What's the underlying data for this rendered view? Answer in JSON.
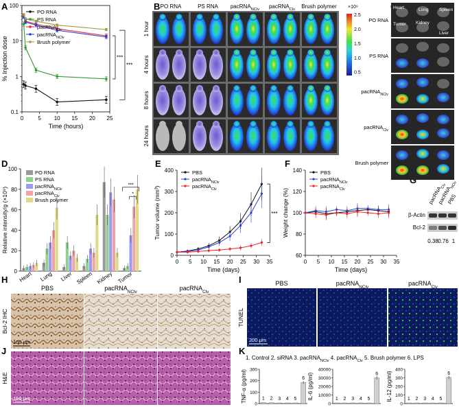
{
  "panel_letters": [
    "A",
    "B",
    "C",
    "D",
    "E",
    "F",
    "G",
    "H",
    "I",
    "J",
    "K"
  ],
  "colors": {
    "po": "#111111",
    "ps": "#2e9e2e",
    "clv": "#e8262a",
    "nclv": "#2c3fd6",
    "brush": "#a09a3c",
    "d_po": "#9a9a9a",
    "d_ps": "#90d190",
    "d_nclv": "#9b9bf0",
    "d_clv": "#f1a4a4",
    "d_brush": "#e0db8a"
  },
  "chart_data": [
    {
      "id": "A",
      "type": "line",
      "xlabel": "Time (hours)",
      "ylabel": "% Injection dose",
      "yscale": "log",
      "ylim": [
        0.1,
        100
      ],
      "xlim": [
        0,
        25
      ],
      "xticks": [
        "0",
        "5",
        "10",
        "15",
        "20",
        "25"
      ],
      "yticks": [
        "0.1",
        "1",
        "10",
        "100"
      ],
      "x": [
        0.5,
        1,
        4,
        10,
        24
      ],
      "series": [
        {
          "name": "PO RNA",
          "values": [
            0.6,
            0.55,
            0.45,
            0.19,
            0.22
          ]
        },
        {
          "name": "PS RNA",
          "values": [
            30,
            6.5,
            1.5,
            1.0,
            0.85
          ]
        },
        {
          "name": "pacRNA_Clv",
          "values": [
            50,
            36,
            30,
            22,
            14
          ]
        },
        {
          "name": "pacRNA_NClv",
          "values": [
            48,
            34,
            28,
            20,
            13
          ]
        },
        {
          "name": "Brush polymer",
          "values": [
            55,
            42,
            36,
            28,
            21
          ]
        }
      ],
      "annotations": [
        "***",
        "***"
      ]
    },
    {
      "id": "D",
      "type": "bar",
      "ylabel": "Relative intensity/g (×10⁹)",
      "ylim": [
        0,
        100
      ],
      "yticks": [
        "0",
        "20",
        "40",
        "60",
        "80",
        "100"
      ],
      "categories": [
        "Heart",
        "Lung",
        "Liver",
        "Spleen",
        "Kidney",
        "Tumor"
      ],
      "series": [
        {
          "name": "PO RNA",
          "values": [
            3,
            8,
            4,
            5,
            87,
            3
          ]
        },
        {
          "name": "PS RNA",
          "values": [
            4,
            22,
            28,
            12,
            55,
            5
          ]
        },
        {
          "name": "pacRNA_NClv",
          "values": [
            5,
            28,
            15,
            22,
            77,
            35
          ]
        },
        {
          "name": "pacRNA_Clv",
          "values": [
            6,
            40,
            20,
            18,
            70,
            63
          ]
        },
        {
          "name": "Brush polymer",
          "values": [
            8,
            62,
            13,
            55,
            18,
            80
          ]
        }
      ],
      "annotations": [
        "***",
        "*"
      ]
    },
    {
      "id": "E",
      "type": "line",
      "xlabel": "Time (days)",
      "ylabel": "Tumor volume (mm³)",
      "ylim": [
        0,
        400
      ],
      "xlim": [
        0,
        35
      ],
      "xticks": [
        "0",
        "5",
        "10",
        "15",
        "20",
        "25",
        "30",
        "35"
      ],
      "yticks": [
        "0",
        "100",
        "200",
        "300",
        "400"
      ],
      "x": [
        0,
        4,
        8,
        12,
        16,
        20,
        24,
        28,
        32
      ],
      "series": [
        {
          "name": "PBS",
          "values": [
            15,
            20,
            30,
            45,
            70,
            110,
            160,
            240,
            335
          ]
        },
        {
          "name": "pacRNA_NClv",
          "values": [
            15,
            18,
            25,
            40,
            60,
            90,
            140,
            200,
            290
          ]
        },
        {
          "name": "pacRNA_Clv",
          "values": [
            15,
            15,
            18,
            22,
            25,
            30,
            35,
            45,
            60
          ]
        }
      ],
      "annotations": [
        "***"
      ]
    },
    {
      "id": "F",
      "type": "line",
      "xlabel": "Time (days)",
      "ylabel": "Weight change (%)",
      "ylim": [
        60,
        140
      ],
      "xlim": [
        0,
        35
      ],
      "xticks": [
        "0",
        "5",
        "10",
        "15",
        "20",
        "25",
        "30",
        "35"
      ],
      "yticks": [
        "60",
        "80",
        "100",
        "120",
        "140"
      ],
      "x": [
        0,
        4,
        8,
        12,
        16,
        20,
        24,
        28,
        32
      ],
      "series": [
        {
          "name": "PBS",
          "values": [
            100,
            101,
            99,
            100,
            101,
            102,
            103,
            102,
            101
          ]
        },
        {
          "name": "pacRNA_NClv",
          "values": [
            100,
            102,
            101,
            103,
            102,
            104,
            104,
            103,
            103
          ]
        },
        {
          "name": "pacRNA_Clv",
          "values": [
            100,
            99,
            98,
            100,
            99,
            101,
            100,
            99,
            100
          ]
        }
      ]
    },
    {
      "id": "K",
      "type": "bar",
      "legend_text": "1. Control  2. siRNA  3. pacRNA_NClv  4. pacRNA_Clv  5. Brush polymer  6. LPS",
      "subplots": [
        {
          "ylabel": "TNF-α (pg/ml)",
          "ylim": [
            0,
            300
          ],
          "yticks": [
            "0",
            "100",
            "200",
            "300"
          ],
          "categories": [
            "1",
            "2",
            "3",
            "4",
            "5",
            "6"
          ],
          "values": [
            8,
            8,
            0,
            0,
            0,
            185
          ]
        },
        {
          "ylabel": "IL-6 (pg/ml)",
          "ylim": [
            0,
            40000
          ],
          "yticks": [
            "0",
            "10000",
            "20000",
            "30000",
            "40000"
          ],
          "categories": [
            "1",
            "2",
            "3",
            "4",
            "5",
            "6"
          ],
          "values": [
            0,
            0,
            0,
            0,
            0,
            30000
          ]
        },
        {
          "ylabel": "IL-12 (pg/ml)",
          "ylim": [
            0,
            400
          ],
          "yticks": [
            "0",
            "100",
            "200",
            "300",
            "400"
          ],
          "categories": [
            "1",
            "2",
            "3",
            "4",
            "5",
            "6"
          ],
          "values": [
            0,
            0,
            0,
            0,
            0,
            305
          ]
        }
      ]
    }
  ],
  "panelB": {
    "columns": [
      "PO RNA",
      "PS RNA",
      "pacRNA_NClv",
      "pacRNA_Clv",
      "Brush polymer"
    ],
    "rows": [
      "1 hour",
      "4 hours",
      "8 hours",
      "24 hours"
    ],
    "scale_title": "×10⁹",
    "scale_ticks": [
      "2.5",
      "2.0",
      "1.5",
      "1.0",
      "0.5"
    ]
  },
  "panelC": {
    "rows": [
      "PO RNA",
      "PS RNA",
      "pacRNA_NClv",
      "pacRNA_Clv",
      "Brush polymer"
    ],
    "organ_labels": [
      "Heart",
      "Lung",
      "Spleen",
      "Tumor",
      "Kidney",
      "Liver"
    ]
  },
  "panelG": {
    "columns": [
      "pacRNA_Clv",
      "pacRNA_NClv",
      "PBS"
    ],
    "bands": [
      "β-Actin",
      "Bcl-2"
    ],
    "ratios": [
      "0.38",
      "0.76",
      "1"
    ]
  },
  "panelH": {
    "columns": [
      "PBS",
      "pacRNA_NClv",
      "pacRNA_Clv"
    ],
    "row_label": "Bcl-2 IHC",
    "scale": "100 μm"
  },
  "panelI": {
    "columns": [
      "PBS",
      "pacRNA_NClv",
      "pacRNA_Clv"
    ],
    "row_label": "TUNEL",
    "scale": "200 μm"
  },
  "panelJ": {
    "row_label": "H&E",
    "scale": "100 μm"
  }
}
